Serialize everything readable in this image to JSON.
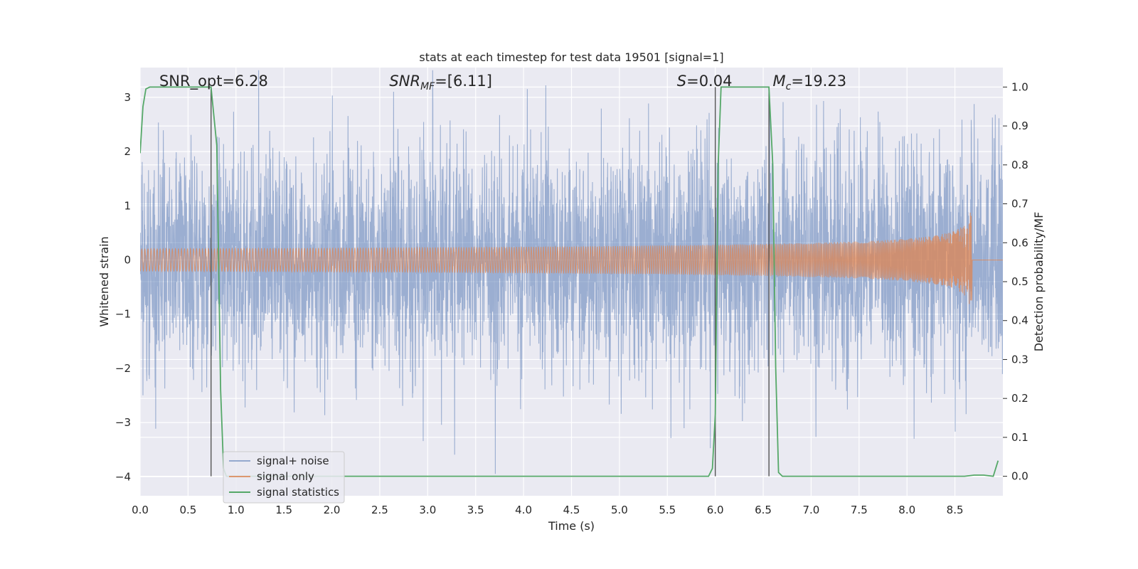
{
  "chart_data": {
    "type": "line",
    "title": "stats at each timestep for test data 19501 [signal=1]",
    "xlabel": "Time (s)",
    "ylabel": "Whitened strain",
    "y2label": "Detection probability/MF",
    "xlim": [
      0,
      9.0
    ],
    "ylim": [
      -4.35,
      3.55
    ],
    "y2lim": [
      -0.05,
      1.05
    ],
    "xticks": [
      0.0,
      0.5,
      1.0,
      1.5,
      2.0,
      2.5,
      3.0,
      3.5,
      4.0,
      4.5,
      5.0,
      5.5,
      6.0,
      6.5,
      7.0,
      7.5,
      8.0,
      8.5
    ],
    "xtick_labels": [
      "0.0",
      "0.5",
      "1.0",
      "1.5",
      "2.0",
      "2.5",
      "3.0",
      "3.5",
      "4.0",
      "4.5",
      "5.0",
      "5.5",
      "6.0",
      "6.5",
      "7.0",
      "7.5",
      "8.0",
      "8.5"
    ],
    "yticks": [
      -4,
      -3,
      -2,
      -1,
      0,
      1,
      2,
      3
    ],
    "ytick_labels": [
      "−4",
      "−3",
      "−2",
      "−1",
      "0",
      "1",
      "2",
      "3"
    ],
    "y2ticks": [
      0.0,
      0.1,
      0.2,
      0.3,
      0.4,
      0.5,
      0.6,
      0.7,
      0.8,
      0.9,
      1.0
    ],
    "y2tick_labels": [
      "0.0",
      "0.1",
      "0.2",
      "0.3",
      "0.4",
      "0.5",
      "0.6",
      "0.7",
      "0.8",
      "0.9",
      "1.0"
    ],
    "grid": true,
    "legend_position": "bottom-left",
    "series": [
      {
        "name": "signal+ noise",
        "color": "#4c72b0",
        "axis": "left",
        "kind": "noise",
        "t_range": [
          0,
          9.0
        ],
        "approx_std": 1.0
      },
      {
        "name": "signal only",
        "color": "#dd8452",
        "axis": "left",
        "kind": "chirp",
        "t_range": [
          0,
          8.68
        ],
        "merger_time": 8.68,
        "peak_amplitude": 1.2
      },
      {
        "name": "signal statistics",
        "color": "#55a868",
        "axis": "right",
        "x": [
          0.0,
          0.03,
          0.06,
          0.1,
          0.15,
          0.2,
          0.3,
          0.4,
          0.5,
          0.6,
          0.7,
          0.74,
          0.8,
          0.84,
          0.87,
          0.9,
          0.95,
          1.0,
          2.0,
          3.0,
          4.0,
          5.0,
          5.5,
          5.93,
          5.97,
          6.0,
          6.03,
          6.06,
          6.1,
          6.3,
          6.5,
          6.56,
          6.6,
          6.63,
          6.66,
          6.7,
          7.0,
          8.0,
          8.6,
          8.7,
          8.8,
          8.9,
          8.95
        ],
        "y": [
          0.83,
          0.95,
          0.995,
          1.0,
          1.0,
          1.0,
          1.0,
          1.0,
          1.0,
          1.0,
          1.0,
          1.0,
          0.85,
          0.22,
          0.02,
          0.0,
          0.0,
          0.0,
          0.0,
          0.0,
          0.0,
          0.0,
          0.0,
          0.0,
          0.02,
          0.16,
          0.8,
          1.0,
          1.0,
          1.0,
          1.0,
          1.0,
          0.8,
          0.28,
          0.01,
          0.0,
          0.0,
          0.0,
          0.0,
          0.003,
          0.003,
          0.0,
          0.04
        ]
      }
    ],
    "vlines": [
      0.74,
      6.0,
      6.56
    ],
    "annotations": [
      {
        "x": 0.2,
        "text": "SNR_opt=6.28"
      },
      {
        "x": 2.6,
        "text": "SNR_MF=[6.11]"
      },
      {
        "x": 5.6,
        "text": "S=0.04"
      },
      {
        "x": 6.6,
        "text": "M_c=19.23"
      }
    ]
  }
}
